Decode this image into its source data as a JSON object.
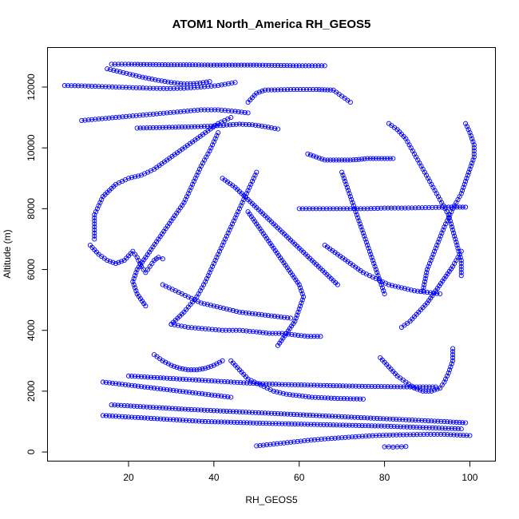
{
  "chart_data": {
    "type": "scatter",
    "title": "ATOM1 North_America RH_GEOS5",
    "xlabel": "RH_GEOS5",
    "ylabel": "Altitude (m)",
    "xlim": [
      1,
      106
    ],
    "ylim": [
      -300,
      13300
    ],
    "x_ticks": [
      20,
      40,
      60,
      80,
      100
    ],
    "y_ticks": [
      0,
      2000,
      4000,
      6000,
      8000,
      10000,
      12000
    ],
    "color": "#0000ff",
    "marker": "open-circle",
    "grid": false,
    "series": [
      {
        "profile": 1,
        "x": [
          16,
          20,
          25,
          30,
          35,
          40,
          45,
          50,
          55,
          60,
          66
        ],
        "y": [
          12750,
          12750,
          12740,
          12730,
          12730,
          12720,
          12720,
          12720,
          12710,
          12700,
          12700
        ]
      },
      {
        "profile": 2,
        "x": [
          5,
          9,
          13,
          17,
          21,
          25,
          29,
          33,
          37,
          41,
          45
        ],
        "y": [
          12050,
          12040,
          12020,
          12000,
          11980,
          11960,
          11950,
          11960,
          12000,
          12050,
          12150
        ]
      },
      {
        "profile": 3,
        "x": [
          15,
          18,
          21,
          24,
          27,
          30,
          33,
          36,
          39
        ],
        "y": [
          12600,
          12500,
          12400,
          12300,
          12220,
          12150,
          12100,
          12120,
          12180
        ]
      },
      {
        "profile": 4,
        "x": [
          9,
          13,
          17,
          21,
          25,
          29,
          33,
          37,
          41,
          45,
          48
        ],
        "y": [
          10900,
          10950,
          11000,
          11050,
          11100,
          11150,
          11200,
          11250,
          11250,
          11200,
          11150
        ]
      },
      {
        "profile": 5,
        "x": [
          48,
          50,
          52,
          55,
          58,
          61,
          64,
          66,
          68,
          70,
          72
        ],
        "y": [
          11500,
          11800,
          11900,
          11910,
          11920,
          11920,
          11920,
          11910,
          11900,
          11700,
          11500
        ]
      },
      {
        "profile": 6,
        "x": [
          22,
          25,
          28,
          31,
          34,
          37,
          40,
          43,
          46,
          49,
          52,
          55
        ],
        "y": [
          10650,
          10660,
          10670,
          10680,
          10690,
          10700,
          10720,
          10750,
          10780,
          10760,
          10700,
          10620
        ]
      },
      {
        "profile": 7,
        "x": [
          12,
          12,
          14,
          17,
          20,
          23,
          26,
          29,
          32,
          35,
          38,
          41,
          44
        ],
        "y": [
          7000,
          7800,
          8400,
          8800,
          9000,
          9100,
          9300,
          9600,
          9900,
          10200,
          10500,
          10800,
          11000
        ]
      },
      {
        "profile": 8,
        "x": [
          11,
          13,
          15,
          17,
          19,
          21,
          22,
          23,
          24,
          25,
          26,
          27,
          28
        ],
        "y": [
          6800,
          6500,
          6300,
          6200,
          6300,
          6600,
          6400,
          6100,
          5900,
          6100,
          6300,
          6400,
          6350
        ]
      },
      {
        "profile": 9,
        "x": [
          24,
          22,
          21,
          22,
          24,
          27,
          30,
          33,
          35,
          37,
          39,
          41
        ],
        "y": [
          4800,
          5200,
          5600,
          6000,
          6400,
          7000,
          7600,
          8200,
          8800,
          9400,
          9900,
          10500
        ]
      },
      {
        "profile": 10,
        "x": [
          30,
          34,
          38,
          42,
          46,
          50,
          53,
          56,
          59,
          62,
          65
        ],
        "y": [
          4200,
          4100,
          4050,
          4000,
          4000,
          3950,
          3900,
          3900,
          3850,
          3800,
          3800
        ]
      },
      {
        "profile": 11,
        "x": [
          30,
          33,
          36,
          38,
          40,
          42,
          44,
          46,
          48,
          50
        ],
        "y": [
          4200,
          4600,
          5100,
          5600,
          6200,
          6800,
          7400,
          8000,
          8600,
          9200
        ]
      },
      {
        "profile": 12,
        "x": [
          44,
          46,
          48,
          51,
          54,
          57,
          60,
          63,
          66,
          69,
          72,
          75
        ],
        "y": [
          3000,
          2700,
          2400,
          2200,
          2000,
          1900,
          1850,
          1800,
          1780,
          1760,
          1750,
          1740
        ]
      },
      {
        "profile": 13,
        "x": [
          50,
          54,
          58,
          62,
          66,
          70,
          74,
          78,
          82,
          86,
          90,
          94,
          97,
          100
        ],
        "y": [
          200,
          260,
          320,
          380,
          430,
          470,
          510,
          540,
          560,
          570,
          580,
          580,
          560,
          540
        ]
      },
      {
        "profile": 14,
        "x": [
          80,
          81,
          82,
          83,
          84,
          85
        ],
        "y": [
          170,
          170,
          160,
          170,
          170,
          180
        ]
      },
      {
        "profile": 15,
        "x": [
          14,
          20,
          26,
          32,
          38,
          44,
          50,
          56,
          62,
          68,
          74,
          80,
          86,
          92,
          98
        ],
        "y": [
          1200,
          1150,
          1100,
          1050,
          1000,
          980,
          950,
          930,
          910,
          890,
          870,
          850,
          820,
          790,
          760
        ]
      },
      {
        "profile": 16,
        "x": [
          16,
          22,
          28,
          34,
          40,
          46,
          52,
          58,
          64,
          70,
          76,
          82,
          88,
          94,
          99
        ],
        "y": [
          1550,
          1500,
          1450,
          1400,
          1360,
          1320,
          1280,
          1240,
          1200,
          1160,
          1120,
          1080,
          1040,
          1000,
          960
        ]
      },
      {
        "profile": 17,
        "x": [
          20,
          26,
          32,
          38,
          44,
          50,
          56,
          62,
          68,
          74,
          80,
          86,
          92
        ],
        "y": [
          2500,
          2450,
          2400,
          2350,
          2300,
          2250,
          2220,
          2200,
          2180,
          2160,
          2150,
          2140,
          2140
        ]
      },
      {
        "profile": 18,
        "x": [
          60,
          64,
          68,
          72,
          76,
          80,
          84,
          88,
          92,
          95,
          97,
          99
        ],
        "y": [
          8000,
          8000,
          8000,
          8000,
          8000,
          8020,
          8020,
          8030,
          8040,
          8050,
          8050,
          8050
        ]
      },
      {
        "profile": 19,
        "x": [
          98,
          98,
          97,
          96,
          95,
          93,
          91,
          89,
          87,
          85,
          83,
          81
        ],
        "y": [
          5800,
          6300,
          6800,
          7300,
          7800,
          8300,
          8800,
          9300,
          9800,
          10300,
          10600,
          10800
        ]
      },
      {
        "profile": 20,
        "x": [
          99,
          100,
          101,
          101,
          100,
          99,
          98,
          96,
          94,
          92,
          90,
          89
        ],
        "y": [
          10800,
          10500,
          10100,
          9700,
          9300,
          8900,
          8500,
          8000,
          7400,
          6700,
          6000,
          5300
        ]
      },
      {
        "profile": 21,
        "x": [
          96,
          96,
          95,
          94,
          93,
          91,
          89,
          87,
          85,
          83,
          81,
          79
        ],
        "y": [
          3400,
          3000,
          2600,
          2300,
          2100,
          2000,
          2000,
          2100,
          2300,
          2500,
          2800,
          3100
        ]
      },
      {
        "profile": 22,
        "x": [
          66,
          69,
          72,
          75,
          78,
          81,
          84,
          87,
          90,
          93
        ],
        "y": [
          6800,
          6500,
          6200,
          5900,
          5700,
          5500,
          5400,
          5300,
          5250,
          5200
        ]
      },
      {
        "profile": 23,
        "x": [
          42,
          45,
          48,
          51,
          54,
          57,
          60,
          63,
          66,
          69
        ],
        "y": [
          9000,
          8700,
          8300,
          7900,
          7500,
          7100,
          6700,
          6300,
          5900,
          5500
        ]
      },
      {
        "profile": 24,
        "x": [
          55,
          57,
          59,
          60,
          61,
          60,
          58,
          56,
          54,
          52,
          50,
          48
        ],
        "y": [
          3500,
          3900,
          4300,
          4700,
          5100,
          5500,
          5900,
          6300,
          6700,
          7100,
          7500,
          7900
        ]
      },
      {
        "profile": 25,
        "x": [
          70,
          71,
          72,
          73,
          74,
          75,
          76,
          77,
          78,
          79,
          80
        ],
        "y": [
          9200,
          8800,
          8400,
          8000,
          7600,
          7200,
          6800,
          6400,
          6000,
          5600,
          5200
        ]
      },
      {
        "profile": 26,
        "x": [
          26,
          28,
          30,
          32,
          34,
          36,
          38,
          40,
          42
        ],
        "y": [
          3200,
          3000,
          2850,
          2750,
          2700,
          2700,
          2750,
          2850,
          3000
        ]
      },
      {
        "profile": 27,
        "x": [
          62,
          64,
          66,
          68,
          70,
          72,
          74,
          76,
          78,
          80,
          82
        ],
        "y": [
          9800,
          9700,
          9600,
          9600,
          9600,
          9600,
          9620,
          9650,
          9650,
          9650,
          9650
        ]
      },
      {
        "profile": 28,
        "x": [
          28,
          31,
          34,
          37,
          40,
          43,
          46,
          49,
          52,
          55,
          58
        ],
        "y": [
          5500,
          5300,
          5100,
          4900,
          4800,
          4700,
          4600,
          4550,
          4500,
          4450,
          4400
        ]
      },
      {
        "profile": 29,
        "x": [
          84,
          86,
          88,
          90,
          92,
          94,
          96,
          98
        ],
        "y": [
          4100,
          4300,
          4600,
          4900,
          5300,
          5700,
          6100,
          6600
        ]
      },
      {
        "profile": 30,
        "x": [
          14,
          17,
          20,
          23,
          26,
          29,
          32,
          35,
          38,
          41,
          44
        ],
        "y": [
          2300,
          2250,
          2200,
          2150,
          2100,
          2050,
          2000,
          1950,
          1900,
          1850,
          1800
        ]
      }
    ]
  }
}
